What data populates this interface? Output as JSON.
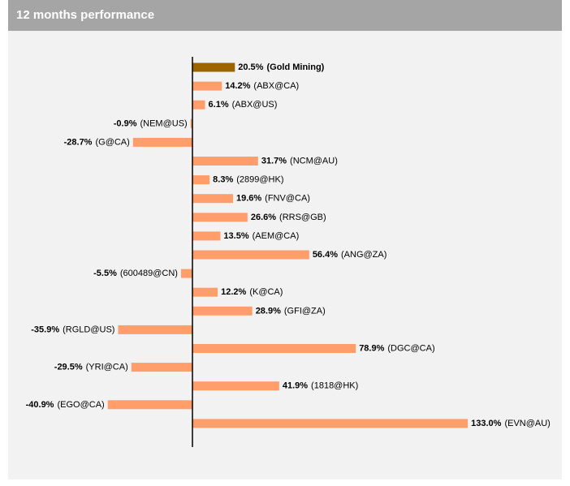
{
  "chart_data": {
    "type": "hbar",
    "title": "12 months performance",
    "categories": [
      "(Gold Mining)",
      "(ABX@CA)",
      "(ABX@US)",
      "(NEM@US)",
      "(G@CA)",
      "(NCM@AU)",
      "(2899@HK)",
      "(FNV@CA)",
      "(RRS@GB)",
      "(AEM@CA)",
      "(ANG@ZA)",
      "(600489@CN)",
      "(K@CA)",
      "(GFI@ZA)",
      "(RGLD@US)",
      "(DGC@CA)",
      "(YRI@CA)",
      "(1818@HK)",
      "(EGO@CA)",
      "(EVN@AU)"
    ],
    "values": [
      20.5,
      14.2,
      6.1,
      -0.9,
      -28.7,
      31.7,
      8.3,
      19.6,
      26.6,
      13.5,
      56.4,
      -5.5,
      12.2,
      28.9,
      -35.9,
      78.9,
      -29.5,
      41.9,
      -40.9,
      133.0
    ],
    "value_labels": [
      "20.5%",
      "14.2%",
      "6.1%",
      "-0.9%",
      "-28.7%",
      "31.7%",
      "8.3%",
      "19.6%",
      "26.6%",
      "13.5%",
      "56.4%",
      "-5.5%",
      "12.2%",
      "28.9%",
      "-35.9%",
      "78.9%",
      "-29.5%",
      "41.9%",
      "-40.9%",
      "133.0%"
    ],
    "color": "#ff9e6a",
    "highlight": 0,
    "highlight_color": "#9c6500"
  }
}
